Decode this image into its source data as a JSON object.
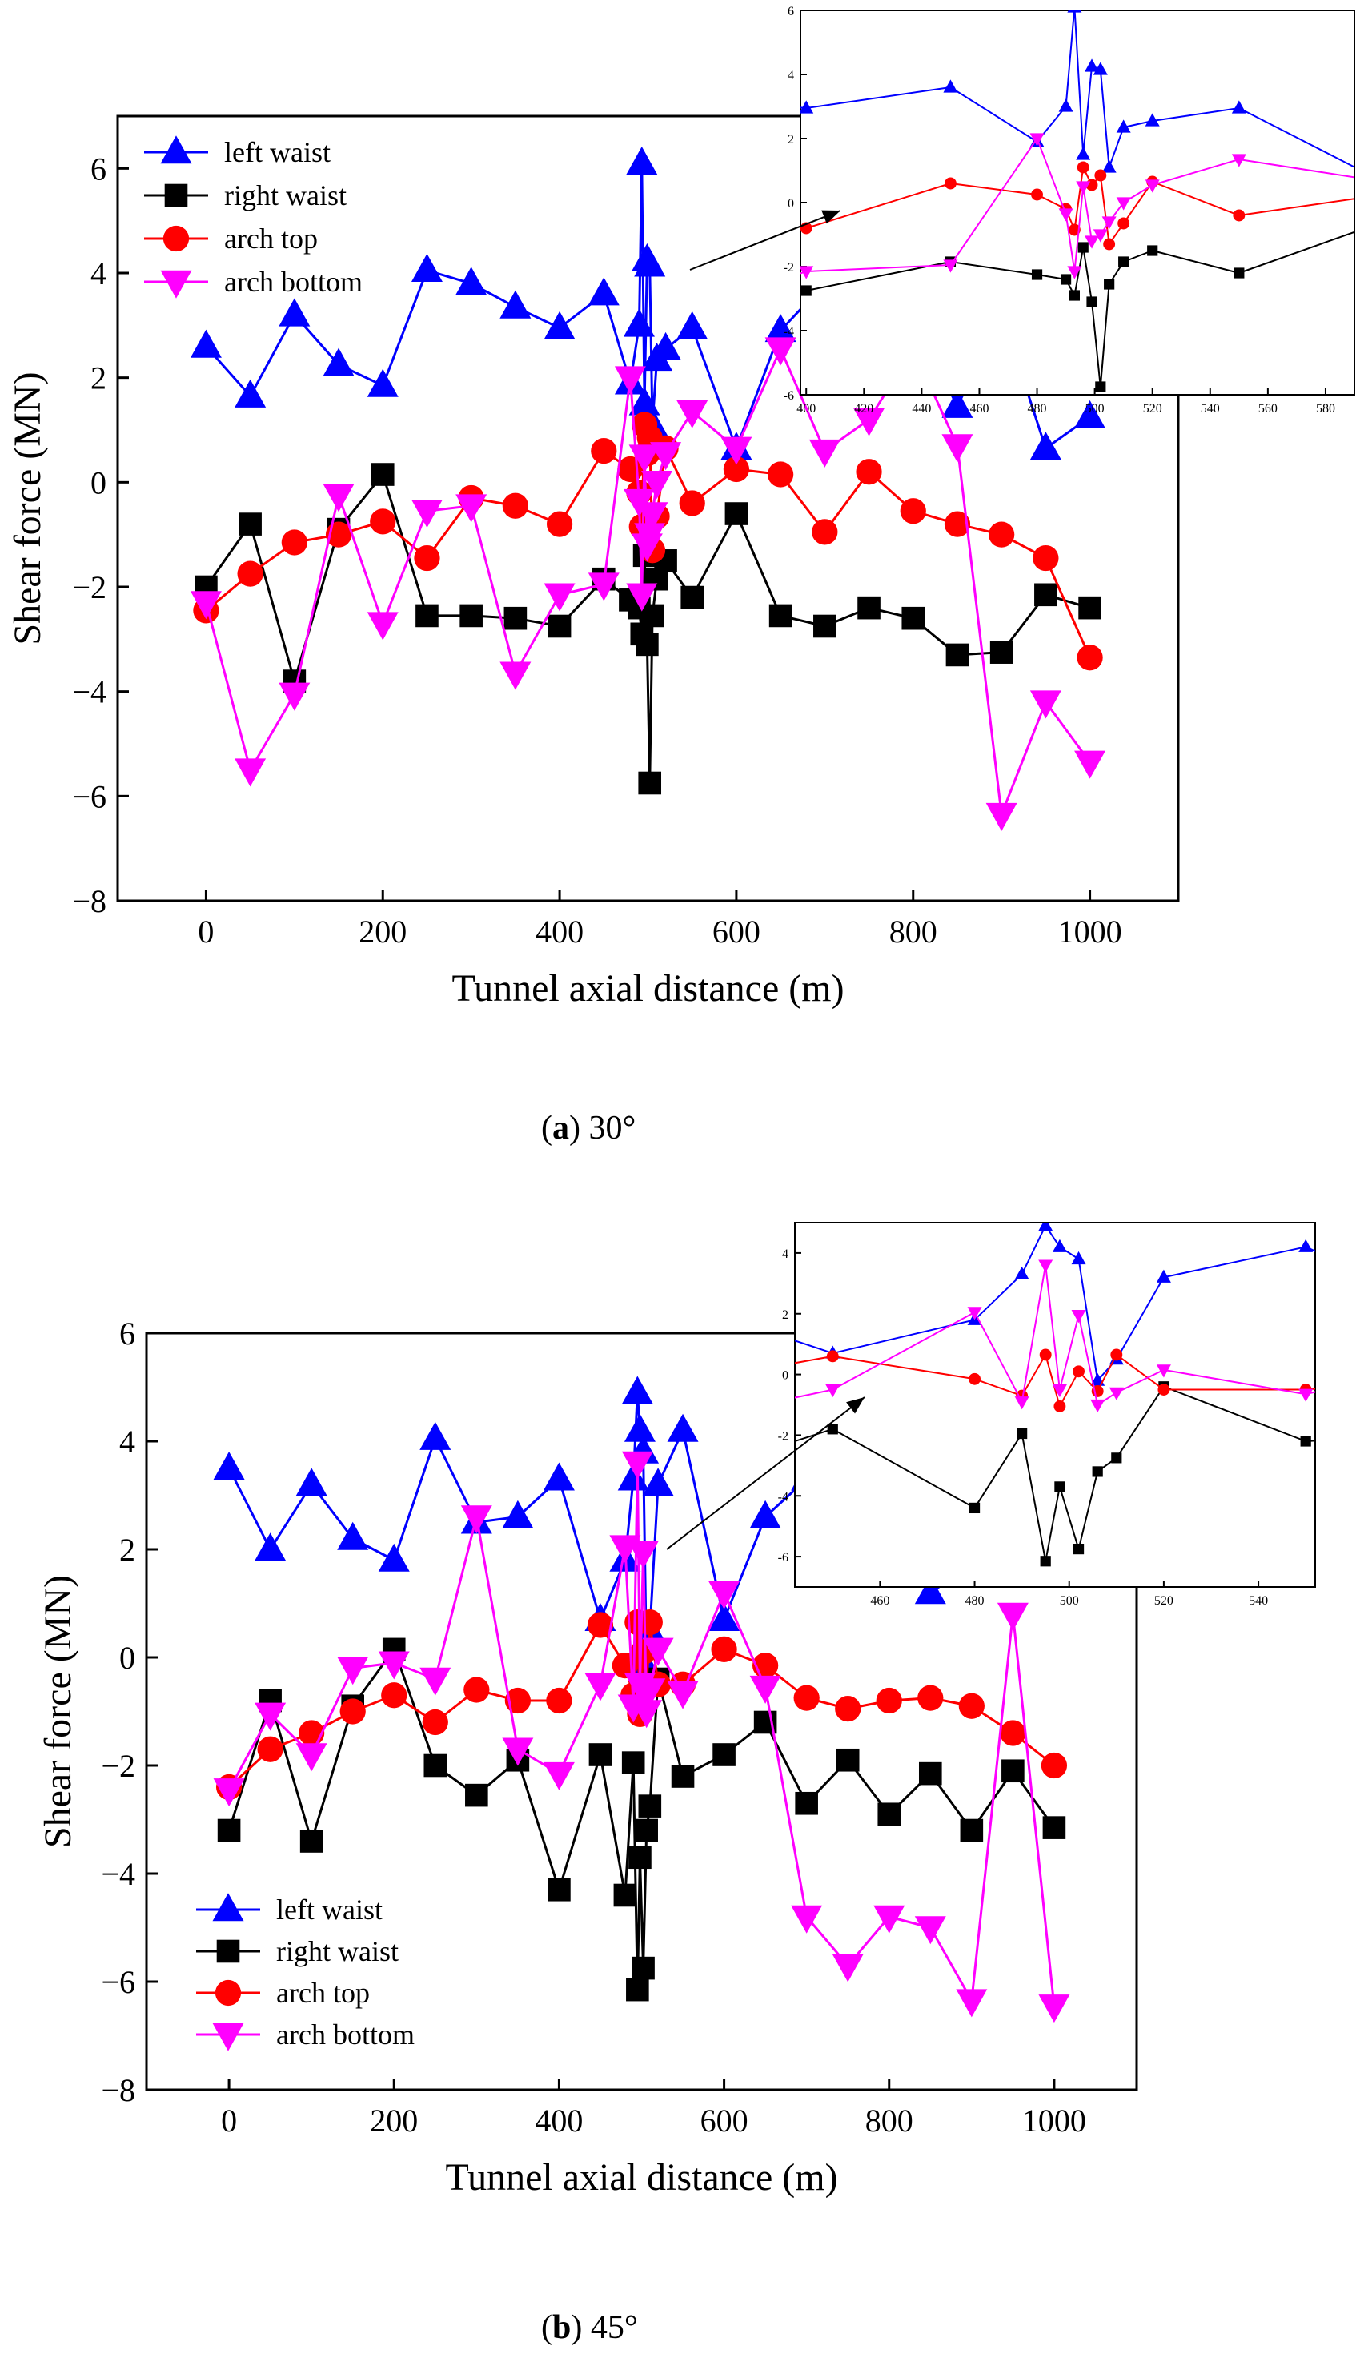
{
  "panels": [
    {
      "caption_letter": "a",
      "caption_text": "30°",
      "main": {
        "type": "line",
        "xlabel": "Tunnel axial distance (m)",
        "ylabel": "Shear force (MN)",
        "xticks": [
          "0",
          "200",
          "400",
          "600",
          "800",
          "1000"
        ],
        "yticks": [
          "6",
          "4",
          "2",
          "0",
          "−2",
          "−4",
          "−6",
          "−8"
        ]
      },
      "inset": {
        "xticks": [
          "400",
          "420",
          "440",
          "460",
          "480",
          "500",
          "520",
          "540",
          "560",
          "580"
        ],
        "yticks": [
          "6",
          "4",
          "2",
          "0",
          "-2",
          "-4",
          "-6"
        ]
      }
    },
    {
      "caption_letter": "b",
      "caption_text": "45°",
      "main": {
        "type": "line",
        "xlabel": "Tunnel axial distance (m)",
        "ylabel": "Shear force (MN)",
        "xticks": [
          "0",
          "200",
          "400",
          "600",
          "800",
          "1000"
        ],
        "yticks": [
          "6",
          "4",
          "2",
          "0",
          "−2",
          "−4",
          "−6",
          "−8"
        ]
      },
      "inset": {
        "xticks": [
          "460",
          "480",
          "500",
          "520",
          "540"
        ],
        "yticks": [
          "4",
          "2",
          "0",
          "-2",
          "-4",
          "-6"
        ]
      }
    }
  ],
  "legend": [
    {
      "name": "left waist",
      "color": "#0000ff",
      "marker": "triangle-up"
    },
    {
      "name": "right waist",
      "color": "#000000",
      "marker": "square"
    },
    {
      "name": "arch top",
      "color": "#ff0000",
      "marker": "circle"
    },
    {
      "name": "arch bottom",
      "color": "#ff00ff",
      "marker": "triangle-down"
    }
  ],
  "chart_data": [
    {
      "type": "line",
      "title": "(a) 30°",
      "xlabel": "Tunnel axial distance (m)",
      "ylabel": "Shear force (MN)",
      "xlim": [
        -100,
        1100
      ],
      "ylim": [
        -8,
        7
      ],
      "legend_position": "top-left",
      "series": [
        {
          "name": "left waist",
          "color": "#0000ff",
          "marker": "triangle-up",
          "x": [
            0,
            50,
            100,
            150,
            200,
            250,
            300,
            350,
            400,
            450,
            480,
            490,
            493,
            496,
            499,
            502,
            505,
            510,
            520,
            550,
            600,
            650,
            700,
            750,
            800,
            850,
            900,
            950,
            1000
          ],
          "y": [
            2.6,
            1.65,
            3.2,
            2.25,
            1.85,
            4.05,
            3.8,
            3.35,
            2.95,
            3.6,
            1.9,
            3.0,
            6.1,
            1.5,
            4.25,
            4.15,
            1.1,
            2.35,
            2.55,
            2.95,
            0.65,
            2.9,
            3.8,
            2.95,
            3.2,
            1.45,
            3.25,
            0.65,
            1.25
          ]
        },
        {
          "name": "right waist",
          "color": "#000000",
          "marker": "square",
          "x": [
            0,
            50,
            100,
            150,
            200,
            250,
            300,
            350,
            400,
            450,
            480,
            490,
            493,
            496,
            499,
            502,
            505,
            510,
            520,
            550,
            600,
            650,
            700,
            750,
            800,
            850,
            900,
            950,
            1000
          ],
          "y": [
            -2.0,
            -0.8,
            -3.8,
            -0.9,
            0.15,
            -2.55,
            -2.55,
            -2.6,
            -2.75,
            -1.85,
            -2.25,
            -2.4,
            -2.9,
            -1.4,
            -3.1,
            -5.75,
            -2.55,
            -1.85,
            -1.5,
            -2.2,
            -0.6,
            -2.55,
            -2.75,
            -2.4,
            -2.6,
            -3.3,
            -3.25,
            -2.15,
            -2.4
          ]
        },
        {
          "name": "arch top",
          "color": "#ff0000",
          "marker": "circle",
          "x": [
            0,
            50,
            100,
            150,
            200,
            250,
            300,
            350,
            400,
            450,
            480,
            490,
            493,
            496,
            499,
            502,
            505,
            510,
            520,
            550,
            600,
            650,
            700,
            750,
            800,
            850,
            900,
            950,
            1000
          ],
          "y": [
            -2.45,
            -1.75,
            -1.15,
            -1.0,
            -0.75,
            -1.45,
            -0.3,
            -0.45,
            -0.8,
            0.6,
            0.25,
            -0.2,
            -0.85,
            1.1,
            0.55,
            0.85,
            -1.3,
            -0.65,
            0.65,
            -0.4,
            0.25,
            0.15,
            -0.95,
            0.2,
            -0.55,
            -0.8,
            -1.0,
            -1.45,
            -3.35
          ]
        },
        {
          "name": "arch bottom",
          "color": "#ff00ff",
          "marker": "triangle-down",
          "x": [
            0,
            50,
            100,
            150,
            200,
            250,
            300,
            350,
            400,
            450,
            480,
            490,
            493,
            496,
            499,
            502,
            505,
            510,
            520,
            550,
            600,
            650,
            700,
            750,
            800,
            850,
            900,
            950,
            1000
          ],
          "y": [
            -2.3,
            -5.5,
            -4.05,
            -0.25,
            -2.7,
            -0.55,
            -0.45,
            -3.65,
            -2.15,
            -1.95,
            2.0,
            -0.35,
            -2.15,
            0.5,
            -1.2,
            -1.0,
            -0.6,
            0.0,
            0.55,
            1.35,
            0.65,
            2.55,
            0.6,
            1.2,
            2.55,
            0.7,
            -6.35,
            -4.2,
            -5.35
          ]
        }
      ],
      "inset": {
        "xlim": [
          398,
          590
        ],
        "ylim": [
          -6,
          6
        ]
      }
    },
    {
      "type": "line",
      "title": "(b) 45°",
      "xlabel": "Tunnel axial distance (m)",
      "ylabel": "Shear force (MN)",
      "xlim": [
        -100,
        1100
      ],
      "ylim": [
        -8,
        6
      ],
      "legend_position": "bottom-left",
      "series": [
        {
          "name": "left waist",
          "color": "#0000ff",
          "marker": "triangle-up",
          "x": [
            0,
            50,
            100,
            150,
            200,
            250,
            300,
            350,
            400,
            450,
            480,
            490,
            495,
            498,
            502,
            506,
            510,
            520,
            550,
            600,
            650,
            700,
            750,
            800,
            850,
            900,
            950,
            1000
          ],
          "y": [
            3.5,
            2.0,
            3.2,
            2.2,
            1.8,
            4.05,
            2.5,
            2.6,
            3.3,
            0.7,
            1.8,
            3.3,
            4.9,
            4.2,
            3.8,
            -0.2,
            0.5,
            3.2,
            4.2,
            0.7,
            2.6,
            3.3,
            2.5,
            2.2,
            1.2,
            1.7,
            2.6,
            4.2
          ]
        },
        {
          "name": "right waist",
          "color": "#000000",
          "marker": "square",
          "x": [
            0,
            50,
            100,
            150,
            200,
            250,
            300,
            350,
            400,
            450,
            480,
            490,
            495,
            498,
            502,
            506,
            510,
            520,
            550,
            600,
            650,
            700,
            750,
            800,
            850,
            900,
            950,
            1000
          ],
          "y": [
            -3.2,
            -0.8,
            -3.4,
            -0.9,
            0.15,
            -2.0,
            -2.55,
            -1.9,
            -4.3,
            -1.8,
            -4.4,
            -1.95,
            -6.15,
            -3.7,
            -5.75,
            -3.2,
            -2.75,
            -0.4,
            -2.2,
            -1.8,
            -1.2,
            -2.7,
            -1.9,
            -2.9,
            -2.15,
            -3.2,
            -2.1,
            -3.15
          ]
        },
        {
          "name": "arch top",
          "color": "#ff0000",
          "marker": "circle",
          "x": [
            0,
            50,
            100,
            150,
            200,
            250,
            300,
            350,
            400,
            450,
            480,
            490,
            495,
            498,
            502,
            506,
            510,
            520,
            550,
            600,
            650,
            700,
            750,
            800,
            850,
            900,
            950,
            1000
          ],
          "y": [
            -2.4,
            -1.7,
            -1.4,
            -1.0,
            -0.7,
            -1.2,
            -0.6,
            -0.8,
            -0.8,
            0.6,
            -0.15,
            -0.7,
            0.65,
            -1.05,
            0.1,
            -0.55,
            0.65,
            -0.5,
            -0.5,
            0.15,
            -0.15,
            -0.75,
            -0.95,
            -0.8,
            -0.75,
            -0.9,
            -1.4,
            -2.0
          ]
        },
        {
          "name": "arch bottom",
          "color": "#ff00ff",
          "marker": "triangle-down",
          "x": [
            0,
            50,
            100,
            150,
            200,
            250,
            300,
            350,
            400,
            450,
            480,
            490,
            495,
            498,
            502,
            506,
            510,
            520,
            550,
            600,
            650,
            700,
            750,
            800,
            850,
            900,
            950,
            1000
          ],
          "y": [
            -2.45,
            -1.05,
            -1.8,
            -0.2,
            -0.1,
            -0.4,
            2.6,
            -1.7,
            -2.15,
            -0.5,
            2.05,
            -0.9,
            3.6,
            -0.5,
            1.95,
            -1.0,
            -0.6,
            0.15,
            -0.65,
            1.2,
            -0.55,
            -4.8,
            -5.7,
            -4.8,
            -5.0,
            -6.35,
            0.8,
            -6.45
          ]
        }
      ],
      "inset": {
        "xlim": [
          442,
          552
        ],
        "ylim": [
          -7,
          5
        ]
      }
    }
  ]
}
